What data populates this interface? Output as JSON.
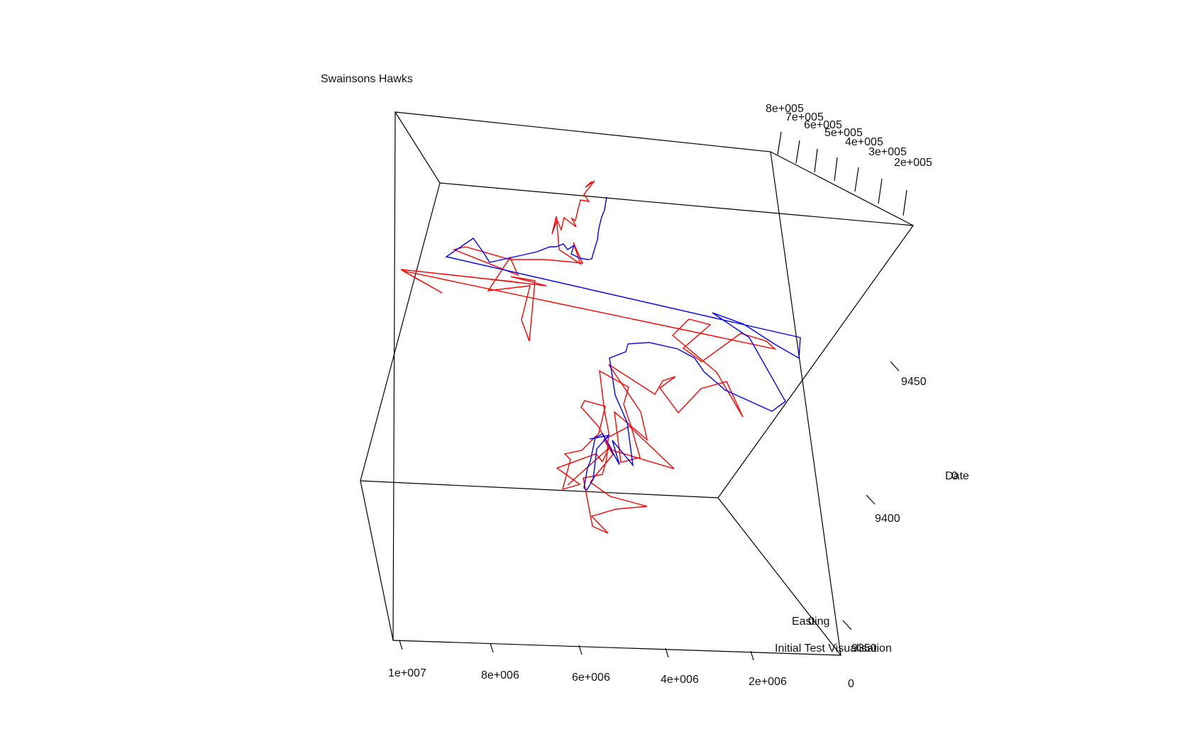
{
  "chart_data": {
    "type": "line",
    "projection": "3d-perspective",
    "title": "Swainsons Hawks",
    "subtitle": "Initial Test Visualisation",
    "axes": {
      "x": {
        "label": "Easting",
        "ticks": [
          "2e+005",
          "3e+005",
          "4e+005",
          "5e+005",
          "6e+005",
          "7e+005",
          "8e+005"
        ]
      },
      "y": {
        "label": "Date",
        "ticks": [
          "9350",
          "9400",
          "9450"
        ]
      },
      "z": {
        "label": "",
        "ticks": [
          "0",
          "2e+006",
          "4e+006",
          "6e+006",
          "8e+006",
          "1e+007"
        ]
      }
    },
    "overlapping_glyphs": [
      "0",
      "0"
    ],
    "grid": false,
    "legend": false,
    "series_colors": [
      "#ff0000",
      "#0000ff"
    ],
    "box_color": "#000000"
  }
}
